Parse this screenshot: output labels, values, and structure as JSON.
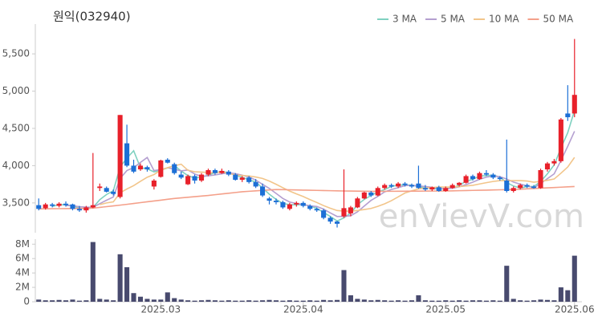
{
  "chart_data": {
    "type": "candlestick",
    "title": "원익(032940)",
    "watermark": "enVievV.com",
    "legend": "top-right",
    "up_color": "#e8202a",
    "down_color": "#1c6fd6",
    "categories": [
      null,
      null,
      null,
      null,
      null,
      null,
      null,
      null,
      null,
      null,
      null,
      null,
      null,
      null,
      null,
      null,
      null,
      null,
      "2025.03",
      null,
      null,
      null,
      null,
      null,
      null,
      null,
      null,
      null,
      null,
      null,
      null,
      null,
      null,
      null,
      null,
      null,
      null,
      null,
      null,
      "2025.04",
      null,
      null,
      null,
      null,
      null,
      null,
      null,
      null,
      null,
      null,
      null,
      null,
      null,
      null,
      null,
      null,
      null,
      null,
      null,
      null,
      "2025.05",
      null,
      null,
      null,
      null,
      null,
      null,
      null,
      null,
      null,
      null,
      null,
      null,
      null,
      null,
      null,
      null,
      null,
      null,
      "2025.06"
    ],
    "open": [
      3470,
      3430,
      3480,
      3460,
      3490,
      3480,
      3420,
      3400,
      3440,
      3700,
      3700,
      3650,
      3580,
      4300,
      4000,
      3950,
      3980,
      3720,
      3850,
      4080,
      4020,
      3880,
      3750,
      3860,
      3800,
      3880,
      3940,
      3900,
      3920,
      3880,
      3810,
      3840,
      3780,
      3720,
      3560,
      3530,
      3510,
      3420,
      3480,
      3500,
      3460,
      3420,
      3400,
      3300,
      3250,
      3320,
      3360,
      3440,
      3560,
      3640,
      3600,
      3700,
      3740,
      3720,
      3760,
      3740,
      3760,
      3700,
      3680,
      3710,
      3660,
      3700,
      3740,
      3770,
      3860,
      3820,
      3900,
      3880,
      3840,
      3800,
      3660,
      3700,
      3740,
      3720,
      3700,
      3950,
      4030,
      4060,
      4700,
      4700
    ],
    "high": [
      3560,
      3500,
      3500,
      3510,
      3520,
      3490,
      3460,
      3460,
      4170,
      3760,
      3720,
      3680,
      4680,
      4550,
      4080,
      4030,
      4000,
      3820,
      4080,
      4100,
      4040,
      3920,
      3880,
      3880,
      3900,
      3960,
      3960,
      3960,
      3940,
      3900,
      3860,
      3860,
      3820,
      3760,
      3580,
      3560,
      3530,
      3500,
      3520,
      3520,
      3480,
      3440,
      3420,
      3320,
      3260,
      3950,
      3460,
      3580,
      3650,
      3660,
      3720,
      3760,
      3760,
      3780,
      3780,
      3760,
      4000,
      3740,
      3720,
      3730,
      3720,
      3760,
      3780,
      3880,
      3880,
      3920,
      3940,
      3900,
      3860,
      4350,
      3720,
      3760,
      3760,
      3740,
      3960,
      4050,
      4090,
      4640,
      5080,
      5700
    ],
    "low": [
      3400,
      3410,
      3440,
      3440,
      3450,
      3400,
      3380,
      3370,
      3430,
      3660,
      3640,
      3600,
      3560,
      3980,
      3900,
      3930,
      3920,
      3680,
      3840,
      4030,
      3880,
      3820,
      3740,
      3760,
      3780,
      3860,
      3880,
      3890,
      3860,
      3800,
      3780,
      3760,
      3700,
      3580,
      3480,
      3480,
      3420,
      3400,
      3450,
      3440,
      3400,
      3380,
      3280,
      3220,
      3170,
      3300,
      3320,
      3430,
      3550,
      3580,
      3590,
      3680,
      3700,
      3700,
      3720,
      3700,
      3690,
      3660,
      3660,
      3650,
      3650,
      3690,
      3720,
      3760,
      3800,
      3810,
      3860,
      3820,
      3800,
      3640,
      3640,
      3680,
      3700,
      3690,
      3690,
      3920,
      4000,
      4040,
      4600,
      4650
    ],
    "close": [
      3420,
      3480,
      3460,
      3490,
      3470,
      3420,
      3400,
      3440,
      3470,
      3720,
      3650,
      3620,
      4680,
      4000,
      3920,
      4000,
      3950,
      3800,
      4070,
      4040,
      3900,
      3840,
      3860,
      3800,
      3880,
      3940,
      3900,
      3930,
      3880,
      3810,
      3840,
      3780,
      3720,
      3600,
      3530,
      3510,
      3440,
      3480,
      3500,
      3460,
      3420,
      3400,
      3300,
      3250,
      3220,
      3430,
      3440,
      3560,
      3640,
      3600,
      3700,
      3740,
      3720,
      3760,
      3740,
      3720,
      3700,
      3680,
      3710,
      3660,
      3700,
      3740,
      3770,
      3860,
      3820,
      3900,
      3880,
      3840,
      3820,
      3660,
      3700,
      3740,
      3720,
      3700,
      3940,
      4030,
      4060,
      4620,
      4650,
      4950
    ],
    "series": [
      {
        "name": "3 MA",
        "color": "#7fd1c0",
        "values": [
          null,
          null,
          3453,
          3477,
          3473,
          3460,
          3430,
          3420,
          3437,
          3543,
          3613,
          3663,
          3983,
          4100,
          4200,
          3973,
          3957,
          3917,
          3940,
          3970,
          4003,
          3927,
          3867,
          3833,
          3847,
          3873,
          3907,
          3923,
          3903,
          3873,
          3843,
          3810,
          3780,
          3700,
          3617,
          3547,
          3493,
          3477,
          3473,
          3480,
          3460,
          3427,
          3373,
          3317,
          3257,
          3300,
          3363,
          3477,
          3547,
          3600,
          3647,
          3680,
          3720,
          3740,
          3740,
          3740,
          3720,
          3700,
          3697,
          3683,
          3690,
          3700,
          3737,
          3790,
          3817,
          3860,
          3867,
          3873,
          3847,
          3773,
          3727,
          3700,
          3720,
          3720,
          3787,
          3890,
          4010,
          4237,
          4443,
          4740
        ]
      },
      {
        "name": "5 MA",
        "color": "#b49fd0",
        "values": [
          null,
          null,
          null,
          null,
          3464,
          3464,
          3448,
          3444,
          3440,
          3490,
          3536,
          3580,
          3828,
          3934,
          3974,
          4044,
          4110,
          3934,
          3948,
          3972,
          3952,
          3930,
          3942,
          3888,
          3856,
          3864,
          3876,
          3890,
          3906,
          3892,
          3872,
          3848,
          3806,
          3750,
          3694,
          3628,
          3560,
          3512,
          3492,
          3478,
          3460,
          3452,
          3416,
          3366,
          3318,
          3320,
          3328,
          3380,
          3458,
          3534,
          3588,
          3648,
          3680,
          3704,
          3732,
          3736,
          3728,
          3720,
          3710,
          3694,
          3690,
          3698,
          3716,
          3746,
          3778,
          3818,
          3846,
          3860,
          3852,
          3820,
          3780,
          3752,
          3728,
          3704,
          3760,
          3826,
          3890,
          4070,
          4260,
          4462
        ]
      },
      {
        "name": "10 MA",
        "color": "#f2c58a",
        "values": [
          null,
          null,
          null,
          null,
          null,
          null,
          null,
          null,
          null,
          3477,
          3500,
          3514,
          3636,
          3687,
          3732,
          3790,
          3845,
          3881,
          3941,
          3973,
          3998,
          4020,
          3938,
          3918,
          3914,
          3908,
          3903,
          3916,
          3897,
          3874,
          3868,
          3862,
          3848,
          3828,
          3793,
          3750,
          3704,
          3659,
          3621,
          3586,
          3544,
          3506,
          3464,
          3429,
          3398,
          3390,
          3390,
          3398,
          3412,
          3426,
          3454,
          3488,
          3530,
          3581,
          3633,
          3662,
          3688,
          3700,
          3707,
          3713,
          3713,
          3713,
          3718,
          3728,
          3736,
          3754,
          3772,
          3788,
          3799,
          3799,
          3799,
          3799,
          3794,
          3778,
          3790,
          3803,
          3821,
          3899,
          3982,
          4111
        ]
      },
      {
        "name": "50 MA",
        "color": "#f4a08a",
        "values": [
          3420,
          3421,
          3422,
          3423,
          3424,
          3425,
          3427,
          3428,
          3430,
          3440,
          3450,
          3460,
          3470,
          3481,
          3492,
          3504,
          3515,
          3526,
          3537,
          3549,
          3560,
          3568,
          3576,
          3584,
          3592,
          3600,
          3610,
          3620,
          3630,
          3640,
          3650,
          3656,
          3662,
          3668,
          3674,
          3680,
          3678,
          3676,
          3674,
          3672,
          3670,
          3668,
          3666,
          3664,
          3662,
          3660,
          3659,
          3658,
          3657,
          3656,
          3655,
          3656,
          3656,
          3657,
          3657,
          3658,
          3658,
          3659,
          3659,
          3660,
          3660,
          3662,
          3664,
          3666,
          3668,
          3670,
          3672,
          3674,
          3676,
          3678,
          3680,
          3684,
          3689,
          3693,
          3698,
          3702,
          3707,
          3711,
          3716,
          3720
        ]
      }
    ],
    "ylim": [
      3100,
      5900
    ],
    "yticks": [
      {
        "value": 3500,
        "label": "3,500"
      },
      {
        "value": 4000,
        "label": "4,000"
      },
      {
        "value": 4500,
        "label": "4,500"
      },
      {
        "value": 5000,
        "label": "5,000"
      },
      {
        "value": 5500,
        "label": "5,500"
      }
    ],
    "volume": {
      "type": "bar",
      "color": "#484a6e",
      "values": [
        300000,
        200000,
        200000,
        250000,
        200000,
        300000,
        150000,
        200000,
        8300000,
        400000,
        300000,
        200000,
        6600000,
        4800000,
        1200000,
        700000,
        400000,
        300000,
        300000,
        1300000,
        500000,
        300000,
        200000,
        150000,
        200000,
        250000,
        200000,
        150000,
        200000,
        150000,
        150000,
        200000,
        150000,
        200000,
        250000,
        200000,
        150000,
        200000,
        150000,
        150000,
        200000,
        150000,
        250000,
        200000,
        250000,
        4400000,
        900000,
        400000,
        300000,
        200000,
        250000,
        200000,
        150000,
        200000,
        150000,
        200000,
        900000,
        200000,
        150000,
        150000,
        200000,
        150000,
        200000,
        150000,
        200000,
        200000,
        150000,
        200000,
        150000,
        5000000,
        400000,
        200000,
        150000,
        200000,
        300000,
        250000,
        200000,
        2000000,
        1600000,
        6400000
      ],
      "ylim": [
        0,
        8700000
      ],
      "yticks": [
        0,
        {
          "value": 2000000,
          "label": "2M"
        },
        {
          "value": 4000000,
          "label": "4M"
        },
        {
          "value": 6000000,
          "label": "6M"
        },
        {
          "value": 8000000,
          "label": "8M"
        }
      ]
    }
  }
}
